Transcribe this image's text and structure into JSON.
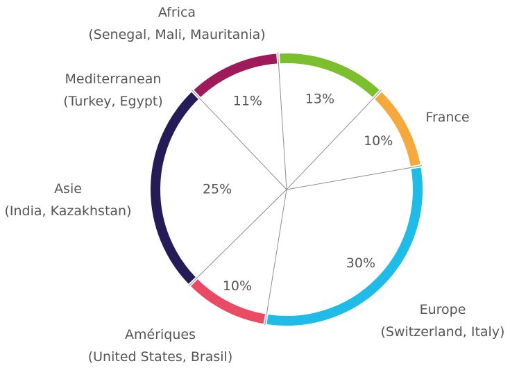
{
  "chart_data": {
    "type": "pie",
    "title": "",
    "legend": "none",
    "slices": [
      {
        "label": "France",
        "sublabel": "",
        "value": 30,
        "value_label": "30%",
        "color": "#1fbce8"
      },
      {
        "label": "Europe",
        "sublabel": "(Switzerland, Italy)",
        "value": 10,
        "value_label": "10%",
        "color": "#ea4a63"
      },
      {
        "label": "Amériques",
        "sublabel": "(United States, Brasil)",
        "value": 25,
        "value_label": "25%",
        "color": "#241b57"
      },
      {
        "label": "Asie",
        "sublabel": "(India, Kazakhstan)",
        "value": 11,
        "value_label": "11%",
        "color": "#9e1a5a"
      },
      {
        "label": "Mediterranean",
        "sublabel": "(Turkey, Egypt)",
        "value": 13,
        "value_label": "13%",
        "color": "#7cbf2d"
      },
      {
        "label": "Africa",
        "sublabel": "(Senegal, Mali, Mauritania)",
        "value": 10,
        "value_label": "10%",
        "color": "#f5a83b"
      }
    ]
  }
}
